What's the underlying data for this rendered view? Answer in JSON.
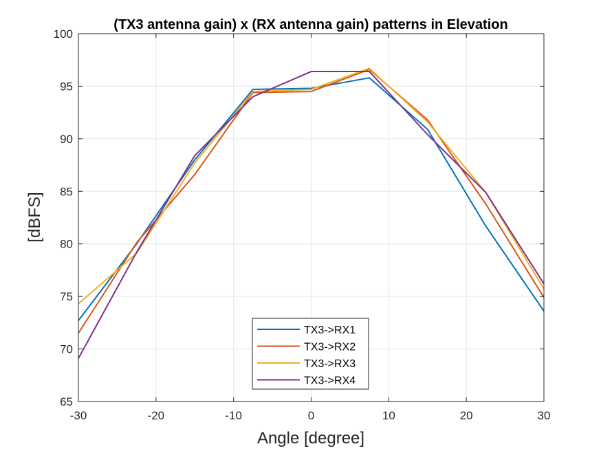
{
  "chart_data": {
    "type": "line",
    "title": "(TX3 antenna gain) x (RX antenna gain) patterns in Elevation",
    "xlabel": "Angle [degree]",
    "ylabel": "[dBFS]",
    "xlim": [
      -30,
      30
    ],
    "ylim": [
      65,
      100
    ],
    "xticks": [
      -30,
      -20,
      -10,
      0,
      10,
      20,
      30
    ],
    "yticks": [
      65,
      70,
      75,
      80,
      85,
      90,
      95,
      100
    ],
    "grid": true,
    "legend_position": "bottom-center",
    "x": [
      -30,
      -22.5,
      -15,
      -7.5,
      0,
      7.5,
      15,
      22.5,
      30
    ],
    "series": [
      {
        "name": "TX3->RX1",
        "color": "#0072BD",
        "values": [
          72.7,
          80.0,
          88.0,
          94.7,
          94.8,
          95.8,
          90.9,
          81.7,
          73.6
        ]
      },
      {
        "name": "TX3->RX2",
        "color": "#D95319",
        "values": [
          71.5,
          80.1,
          86.6,
          94.4,
          94.5,
          96.6,
          91.8,
          83.8,
          74.9
        ]
      },
      {
        "name": "TX3->RX3",
        "color": "#EDB120",
        "values": [
          74.3,
          79.1,
          87.7,
          94.5,
          94.7,
          96.7,
          91.6,
          84.9,
          75.7
        ]
      },
      {
        "name": "TX3->RX4",
        "color": "#7E2F8E",
        "values": [
          69.1,
          79.2,
          88.4,
          94.0,
          96.4,
          96.4,
          90.4,
          84.9,
          76.2
        ]
      }
    ]
  }
}
